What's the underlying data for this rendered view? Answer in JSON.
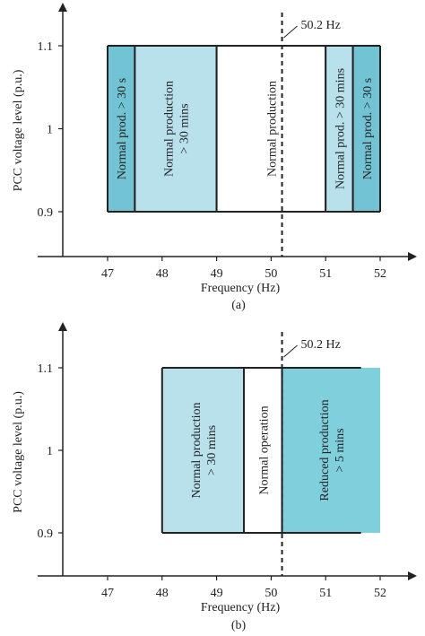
{
  "colors": {
    "dark_zone": "#72c4d4",
    "light_zone": "#b8e1ec",
    "white_zone": "#ffffff",
    "reduced_zone": "#7fcfdc",
    "axis": "#222222"
  },
  "chart_data": [
    {
      "type": "diagram",
      "caption": "(a)",
      "xlabel": "Frequency (Hz)",
      "ylabel": "PCC voltage level (p.u.)",
      "x_ticks": [
        "47",
        "48",
        "49",
        "50",
        "51",
        "52"
      ],
      "y_ticks": [
        "0.9",
        "1",
        "1.1"
      ],
      "xlim": [
        46.25,
        53.2
      ],
      "ylim": [
        0.78,
        1.25
      ],
      "marker": {
        "x": 50.2,
        "label": "50.2 Hz"
      },
      "zones": [
        {
          "x0": 47.0,
          "x1": 47.5,
          "y0": 0.9,
          "y1": 1.1,
          "fill": "dark_zone",
          "lines": [
            "Normal prod. > 30 s"
          ]
        },
        {
          "x0": 47.5,
          "x1": 49.0,
          "y0": 0.9,
          "y1": 1.1,
          "fill": "light_zone",
          "lines": [
            "Normal production",
            "> 30 mins"
          ]
        },
        {
          "x0": 49.0,
          "x1": 51.0,
          "y0": 0.9,
          "y1": 1.1,
          "fill": "white_zone",
          "lines": [
            "Normal production"
          ]
        },
        {
          "x0": 51.0,
          "x1": 51.5,
          "y0": 0.9,
          "y1": 1.1,
          "fill": "light_zone",
          "lines": [
            "Normal prod. > 30 mins"
          ]
        },
        {
          "x0": 51.5,
          "x1": 52.0,
          "y0": 0.9,
          "y1": 1.1,
          "fill": "dark_zone",
          "lines": [
            "Normal prod. > 30 s"
          ]
        }
      ]
    },
    {
      "type": "diagram",
      "caption": "(b)",
      "xlabel": "Frequency (Hz)",
      "ylabel": "PCC voltage level (p.u.)",
      "x_ticks": [
        "47",
        "48",
        "49",
        "50",
        "51",
        "52"
      ],
      "y_ticks": [
        "0.9",
        "1",
        "1.1"
      ],
      "xlim": [
        46.25,
        53.2
      ],
      "ylim": [
        0.78,
        1.25
      ],
      "marker": {
        "x": 50.2,
        "label": "50.2 Hz"
      },
      "zones": [
        {
          "x0": 48.0,
          "x1": 49.5,
          "y0": 0.9,
          "y1": 1.1,
          "fill": "light_zone",
          "lines": [
            "Normal production",
            "> 30 mins"
          ]
        },
        {
          "x0": 49.5,
          "x1": 50.2,
          "y0": 0.9,
          "y1": 1.1,
          "fill": "white_zone",
          "lines": [
            "Normal operation"
          ]
        },
        {
          "x0": 50.2,
          "x1": 52.0,
          "y0": 0.9,
          "y1": 1.1,
          "fill": "reduced_zone",
          "lines": [
            "Reduced production",
            "> 5 mins"
          ],
          "open_right_from": 51.65
        }
      ]
    }
  ]
}
